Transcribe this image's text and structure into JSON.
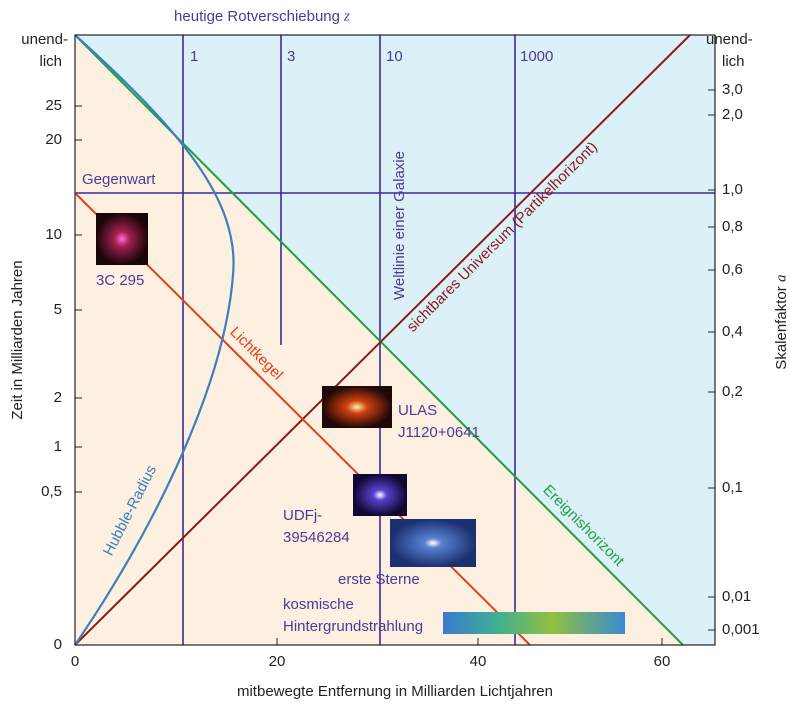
{
  "top_axis": {
    "title": "heutige Rotverschiebung",
    "variable": "z",
    "ticks": [
      "1",
      "3",
      "10",
      "1000"
    ]
  },
  "left_axis": {
    "title": "Zeit in Milliarden Jahren",
    "ticks": [
      "unend-",
      "lich",
      "25",
      "20",
      "10",
      "5",
      "2",
      "1",
      "0,5",
      "0"
    ]
  },
  "right_axis": {
    "title": "Skalenfaktor",
    "variable": "a",
    "ticks": [
      "unend-",
      "lich",
      "3,0",
      "2,0",
      "1,0",
      "0,8",
      "0,6",
      "0,4",
      "0,2",
      "0,1",
      "0,01",
      "0,001"
    ]
  },
  "bottom_axis": {
    "title": "mitbewegte Entfernung in Milliarden Lichtjahren",
    "ticks": [
      "0",
      "20",
      "40",
      "60"
    ]
  },
  "labels": {
    "present": "Gegenwart",
    "worldline": "Weltlinie einer Galaxie",
    "particle_horizon": "sichtbares Universum (Partikelhorizont)",
    "light_cone": "Lichtkegel",
    "hubble_radius": "Hubble-Radius",
    "event_horizon": "Ereignishorizont"
  },
  "objects": {
    "c295": "3C 295",
    "ulas": [
      "ULAS",
      "J1120+0641"
    ],
    "udfj": [
      "UDFj-",
      "39546284"
    ],
    "first_stars": "erste Sterne",
    "cmb": [
      "kosmische",
      "Hintergrundstrahlung"
    ]
  }
}
